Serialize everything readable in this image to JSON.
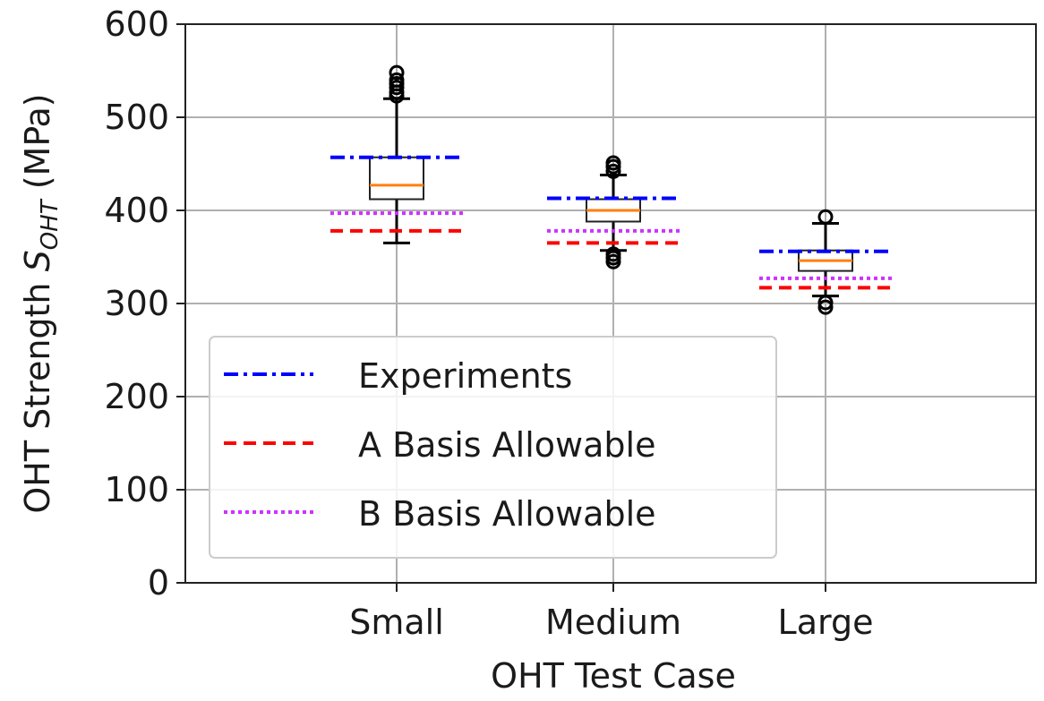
{
  "chart_data": {
    "type": "box",
    "xlabel": "OHT Test Case",
    "ylabel": {
      "main": "OHT Strength ",
      "symbol": "S",
      "subscript": "OHT",
      "unit": " (MPa)"
    },
    "ylim": [
      0,
      600
    ],
    "yticks": [
      0,
      100,
      200,
      300,
      400,
      500,
      600
    ],
    "categories": [
      "Small",
      "Medium",
      "Large"
    ],
    "grid": true,
    "legend_position": "lower-left",
    "boxes": [
      {
        "category": "Small",
        "whisker_low": 365,
        "q1": 412,
        "median": 427,
        "q3": 457,
        "whisker_high": 520,
        "outliers": [
          523,
          527,
          532,
          536,
          540,
          548
        ]
      },
      {
        "category": "Medium",
        "whisker_low": 357,
        "q1": 388,
        "median": 400,
        "q3": 412,
        "whisker_high": 438,
        "outliers": [
          345,
          349,
          353,
          442,
          447,
          451
        ]
      },
      {
        "category": "Large",
        "whisker_low": 308,
        "q1": 335,
        "median": 346,
        "q3": 357,
        "whisker_high": 386,
        "outliers": [
          296,
          301,
          393
        ]
      }
    ],
    "series": [
      {
        "name": "Experiments",
        "style": "dashdot",
        "color": "#0000ff",
        "values": [
          457,
          413,
          356
        ]
      },
      {
        "name": "A Basis Allowable",
        "style": "dashed",
        "color": "#ff0000",
        "values": [
          378,
          365,
          317
        ]
      },
      {
        "name": "B Basis Allowable",
        "style": "dotted",
        "color": "#cc33ff",
        "values": [
          397,
          378,
          327
        ]
      }
    ],
    "median_color": "#ff7f0e"
  }
}
